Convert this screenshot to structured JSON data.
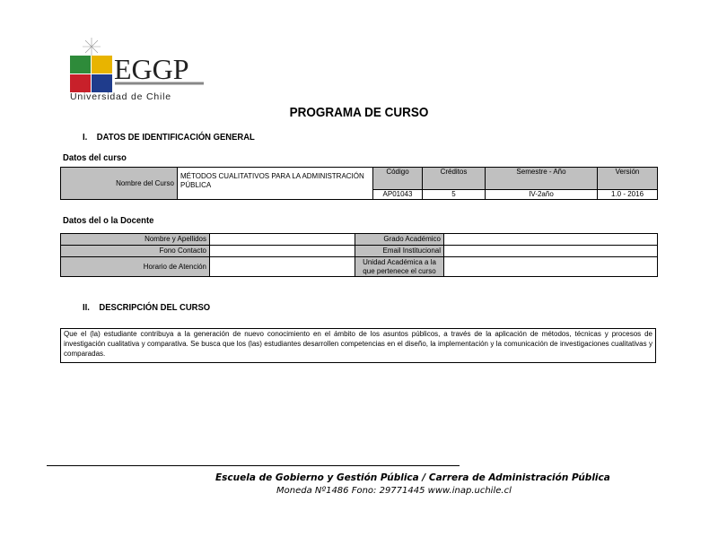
{
  "logo": {
    "text": "EGGP",
    "subtitle": "Universidad de Chile",
    "colors": {
      "green": "#2e8b3a",
      "yellow": "#e8b400",
      "red": "#c8202a",
      "blue": "#1f3c8c",
      "text": "#222222"
    }
  },
  "title": "PROGRAMA DE CURSO",
  "section1": {
    "number": "I.",
    "heading": "DATOS DE IDENTIFICACIÓN GENERAL"
  },
  "curso": {
    "heading": "Datos del curso",
    "nombre_label": "Nombre del Curso",
    "nombre_value": "MÉTODOS CUALITATIVOS PARA LA ADMINISTRACIÓN PÚBLICA",
    "columns": [
      "Código",
      "Créditos",
      "Semestre - Año",
      "Versión"
    ],
    "values": [
      "AP01043",
      "5",
      "IV-2año",
      "1.0 - 2016"
    ]
  },
  "docente": {
    "heading": "Datos del o la Docente",
    "left_labels": [
      "Nombre y Apellidos",
      "Fono Contacto",
      "Horario de Atención"
    ],
    "right_labels": [
      "Grado Académico",
      "Email Institucional",
      "Unidad Académica a la que pertenece el curso"
    ]
  },
  "section2": {
    "number": "II.",
    "heading": "DESCRIPCIÓN DEL CURSO"
  },
  "descripcion": "Que el (la) estudiante contribuya a la generación de nuevo conocimiento en el ámbito de los asuntos públicos, a través de la aplicación de métodos, técnicas y procesos de investigación cualitativa y comparativa. Se busca que los (las) estudiantes desarrollen competencias en el diseño, la implementación y la comunicación de investigaciones cualitativas y comparadas.",
  "footer": {
    "line1": "Escuela de Gobierno y Gestión Pública / Carrera de Administración Pública",
    "line2": "Moneda Nº1486  Fono: 29771445  www.inap.uchile.cl"
  }
}
